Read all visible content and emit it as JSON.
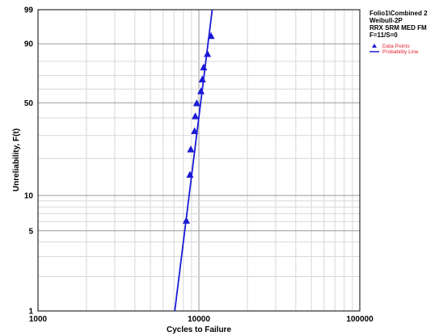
{
  "chart_data": {
    "type": "scatter",
    "title": "",
    "xlabel": "Cycles to Failure",
    "ylabel": "Unreliability, F(t)",
    "x_scale": "log",
    "y_scale": "weibull",
    "xlim": [
      1000,
      100000
    ],
    "ylim": [
      1,
      99
    ],
    "x_ticks": [
      "1000",
      "10000",
      "100000"
    ],
    "y_ticks": [
      {
        "value": 1,
        "label": "1"
      },
      {
        "value": 5,
        "label": "5"
      },
      {
        "value": 10,
        "label": "10"
      },
      {
        "value": 50,
        "label": "50"
      },
      {
        "value": 90,
        "label": "90"
      },
      {
        "value": 99,
        "label": "99"
      }
    ],
    "grid": true,
    "legend_position": "top-right",
    "legend_lines": [
      "Folio1\\Combined 2",
      "Weibull-2P",
      "RRX SRM MED FM",
      "F=11/S=0"
    ],
    "series": [
      {
        "name": "Data Points",
        "kind": "points",
        "color": "#1a1ad6",
        "x": [
          8350,
          8800,
          8900,
          9400,
          9500,
          9700,
          10300,
          10500,
          10700,
          11300,
          11900
        ],
        "y": [
          6.1,
          14.8,
          23.5,
          32.2,
          40.9,
          49.6,
          58.3,
          67.1,
          75.8,
          84.5,
          93.2
        ]
      },
      {
        "name": "Probability Line",
        "kind": "line",
        "color": "#1a1ad6",
        "x": [
          7080,
          12100
        ],
        "y": [
          1,
          99
        ]
      }
    ]
  }
}
